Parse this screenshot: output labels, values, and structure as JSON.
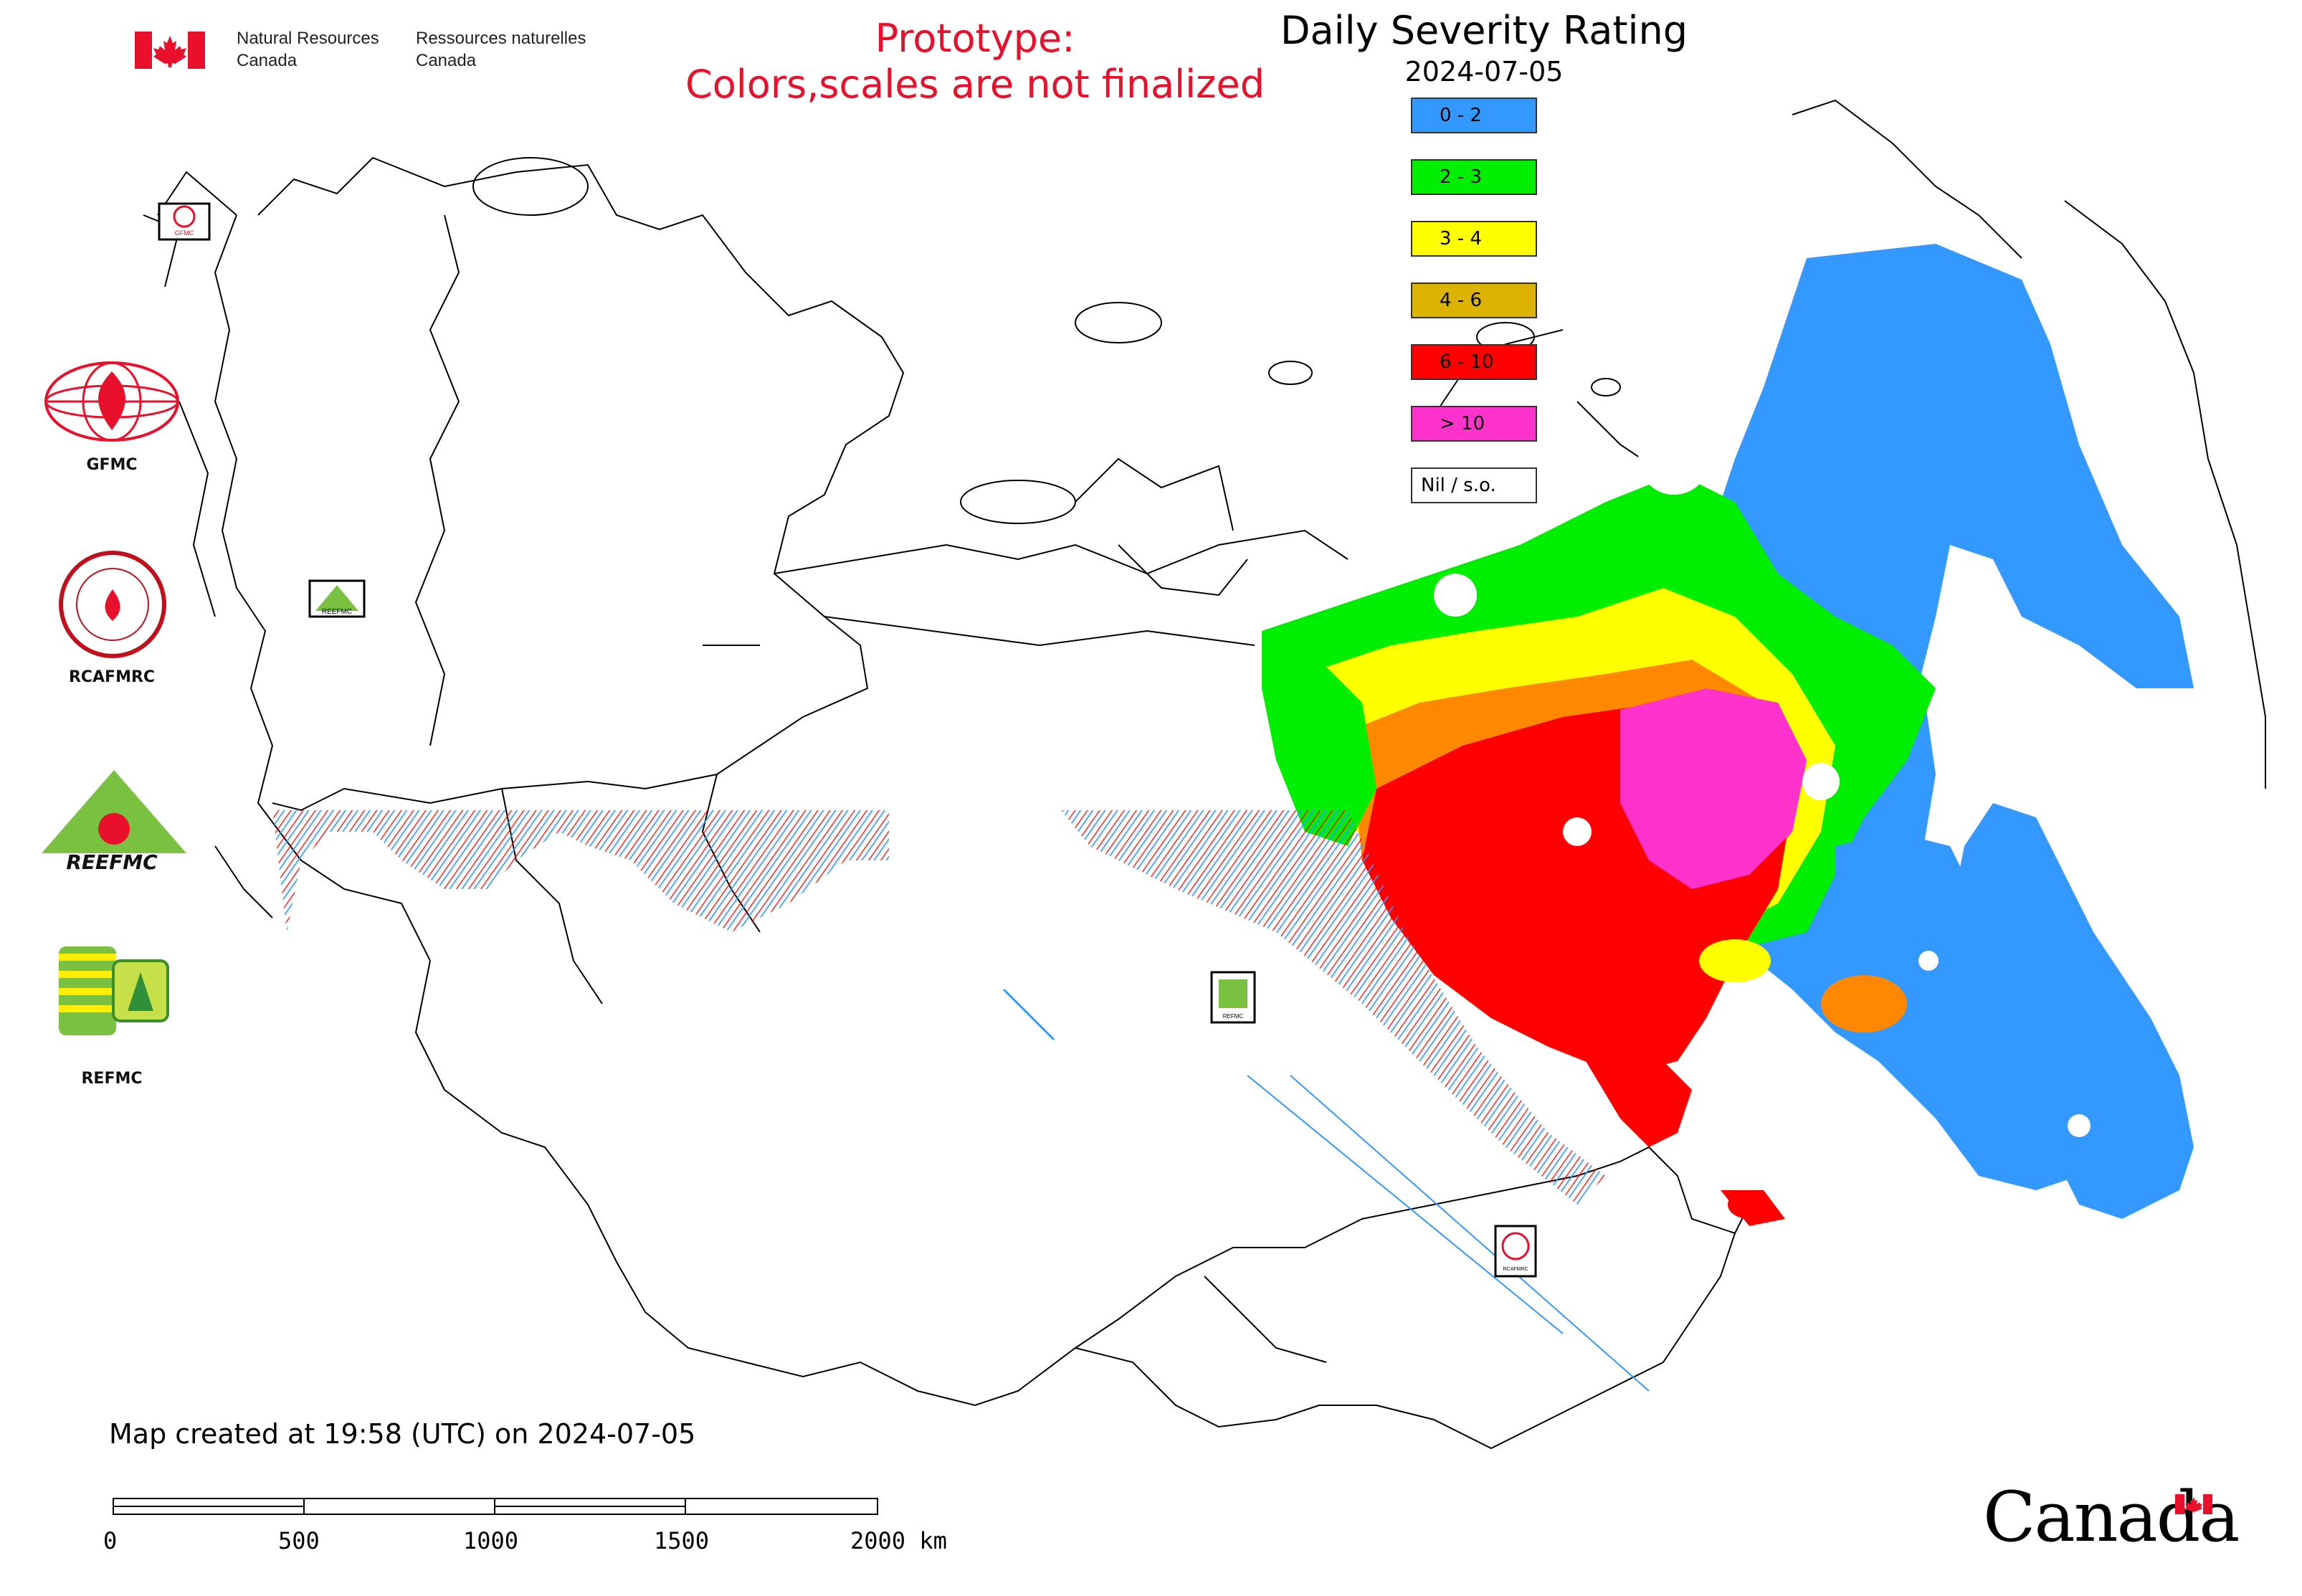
{
  "header": {
    "gov_name_en_line1": "Natural Resources",
    "gov_name_en_line2": "Canada",
    "gov_name_fr_line1": "Ressources naturelles",
    "gov_name_fr_line2": "Canada",
    "prototype_line1": "Prototype:",
    "prototype_line2": "Colors,scales are not finalized",
    "title": "Daily Severity Rating",
    "date": "2024-07-05"
  },
  "legend": {
    "items": [
      {
        "label": "0 - 2",
        "color": "#3399ff"
      },
      {
        "label": "2 - 3",
        "color": "#00ee00"
      },
      {
        "label": "3 - 4",
        "color": "#ffff00"
      },
      {
        "label": "4 - 6",
        "color": "#dcb400"
      },
      {
        "label": "6 - 10",
        "color": "#ff0000"
      },
      {
        "label": "> 10",
        "color": "#ff33cc"
      },
      {
        "label": "Nil / s.o.",
        "color": "#ffffff"
      }
    ]
  },
  "logos": [
    {
      "name": "GFMC",
      "label": "GFMC"
    },
    {
      "name": "RCAFMRC",
      "label": "RCAFMRC"
    },
    {
      "name": "REEFMC",
      "label": "REEFMC"
    },
    {
      "name": "REFMC",
      "label": "REFMC"
    }
  ],
  "map_markers": {
    "gfmc": "GFMC",
    "reefmc": "REEFMC",
    "refmc": "REFMC",
    "rcafmrc": "RCAFMRC"
  },
  "footer": {
    "created": "Map created at 19:58 (UTC) on 2024-07-05",
    "scale_ticks": [
      "0",
      "500",
      "1000",
      "1500",
      "2000 km"
    ],
    "canada_wordmark": "Canada"
  },
  "colors": {
    "flag_red": "#e8102a",
    "prototype_red": "#e8102a"
  }
}
